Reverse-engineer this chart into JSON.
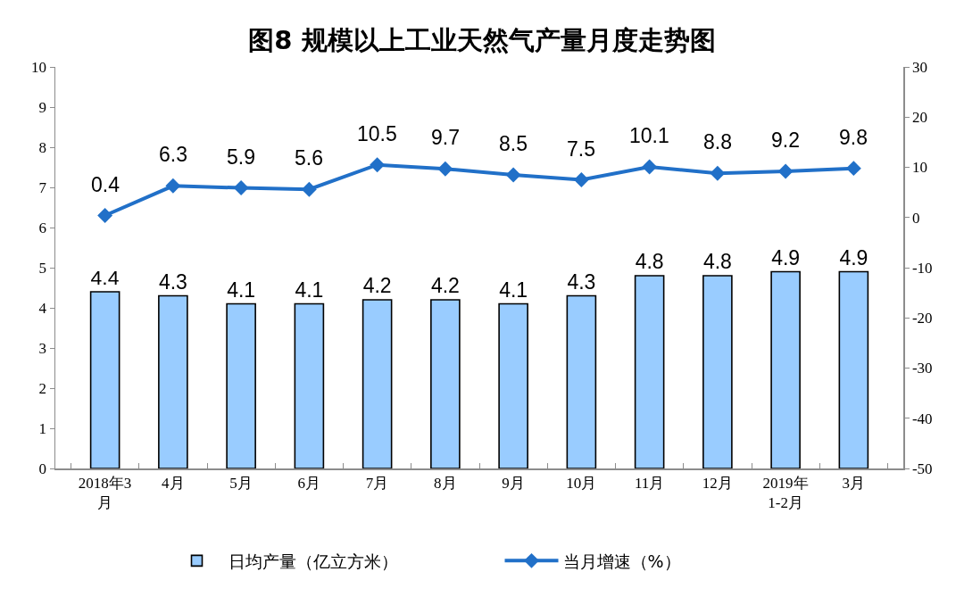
{
  "chart_data": {
    "type": "bar",
    "title": "图8 规模以上工业天然气产量月度走势图",
    "categories": [
      "2018年3月",
      "4月",
      "5月",
      "6月",
      "7月",
      "8月",
      "9月",
      "10月",
      "11月",
      "12月",
      "2019年1-2月",
      "3月"
    ],
    "series": [
      {
        "name": "日均产量（亿立方米）",
        "color": "#99ccff",
        "values": [
          4.4,
          4.3,
          4.1,
          4.1,
          4.2,
          4.2,
          4.1,
          4.3,
          4.8,
          4.8,
          4.9,
          4.9
        ]
      },
      {
        "name": "当月增速（%）",
        "type": "line",
        "axis": "y2",
        "color": "#2170c8",
        "values": [
          0.4,
          6.3,
          5.9,
          5.6,
          10.5,
          9.7,
          8.5,
          7.5,
          10.1,
          8.8,
          9.2,
          9.8
        ]
      }
    ],
    "ylim": [
      0,
      10
    ],
    "yticks": [
      0,
      1,
      2,
      3,
      4,
      5,
      6,
      7,
      8,
      9,
      10
    ],
    "y2lim": [
      -50,
      30
    ],
    "y2ticks": [
      -50,
      -40,
      -30,
      -20,
      -10,
      0,
      10,
      20,
      30
    ],
    "grid": false,
    "legend": "bottom",
    "marker": "diamond",
    "data_labels": true
  }
}
